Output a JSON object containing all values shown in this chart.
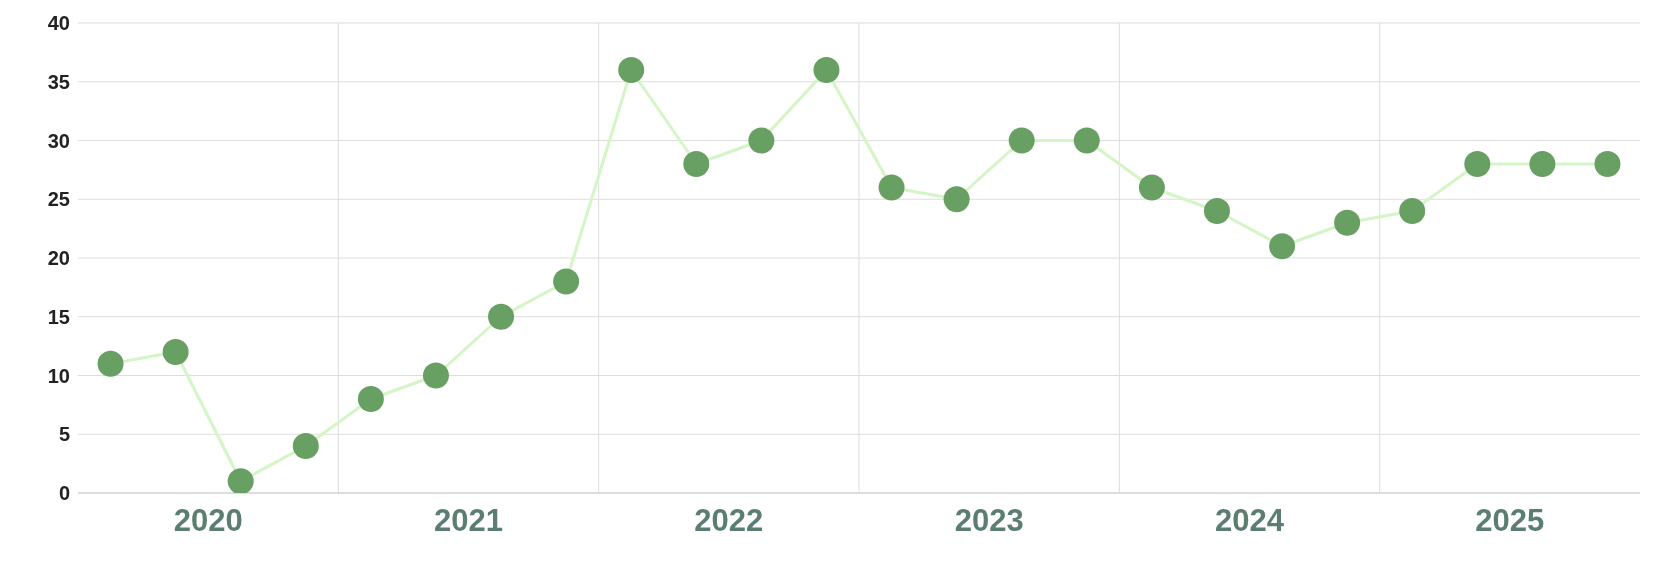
{
  "chart_data": {
    "type": "line",
    "x": [
      2020.125,
      2020.375,
      2020.625,
      2020.875,
      2021.125,
      2021.375,
      2021.625,
      2021.875,
      2022.125,
      2022.375,
      2022.625,
      2022.875,
      2023.125,
      2023.375,
      2023.625,
      2023.875,
      2024.125,
      2024.375,
      2024.625,
      2024.875,
      2025.125,
      2025.375,
      2025.625,
      2025.875
    ],
    "series": [
      {
        "color": "#d4f5c6",
        "colors": [
          "#67a062",
          "#67a062",
          "#67a062",
          "#67a062",
          "#67a062",
          "#67a062",
          "#67a062",
          "#67a062",
          "#67a062",
          "#67a062",
          "#67a062",
          "#67a062",
          "#67a062",
          "#67a062",
          "#67a062",
          "#67a062",
          "#67a062",
          "#67a062",
          "#67a062",
          "#67a062",
          "#67a062",
          "#67a062",
          "#67a062",
          "#67a062"
        ],
        "values": [
          11,
          12,
          1,
          4,
          8,
          10,
          15,
          18,
          36,
          28,
          30,
          36,
          26,
          25,
          30,
          30,
          26,
          24,
          21,
          23,
          24,
          28,
          28,
          28
        ]
      }
    ],
    "xlim": [
      2020,
      2026
    ],
    "xticks": [
      {
        "value": 2020.5,
        "label": "2020"
      },
      {
        "value": 2021,
        "label": null
      },
      {
        "value": 2021.5,
        "label": "2021"
      },
      {
        "value": 2022,
        "label": null
      },
      {
        "value": 2022.5,
        "label": "2022"
      },
      {
        "value": 2023,
        "label": null
      },
      {
        "value": 2023.5,
        "label": "2023"
      },
      {
        "value": 2024,
        "label": null
      },
      {
        "value": 2024.5,
        "label": "2024"
      },
      {
        "value": 2025,
        "label": null
      },
      {
        "value": 2025.5,
        "label": "2025"
      }
    ],
    "ylim": [
      0,
      40
    ],
    "yticks": [
      0,
      5,
      10,
      15,
      20,
      25,
      30,
      35,
      40
    ],
    "grid": true,
    "marker": "circle",
    "line_style": "solid",
    "legend": false
  }
}
